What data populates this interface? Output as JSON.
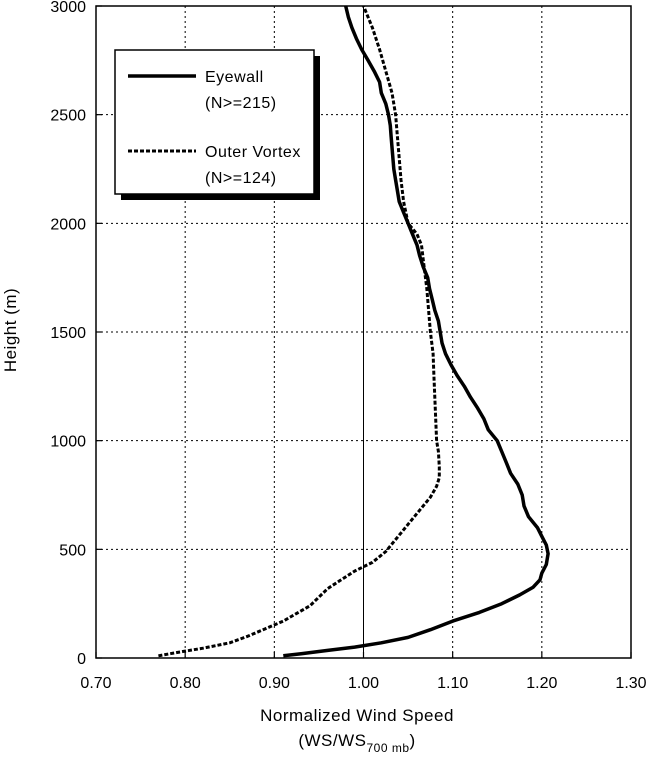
{
  "chart_data": {
    "type": "line",
    "title": "",
    "xlabel": "Normalized Wind Speed",
    "xlabel_line2_main": "(WS/WS",
    "xlabel_line2_sub": "700 mb",
    "xlabel_line2_end": ")",
    "ylabel": "Height (m)",
    "xlim": [
      0.7,
      1.3
    ],
    "ylim": [
      0,
      3000
    ],
    "x_ticks": [
      "0.70",
      "0.80",
      "0.90",
      "1.00",
      "1.10",
      "1.20",
      "1.30"
    ],
    "y_ticks": [
      "0",
      "500",
      "1000",
      "1500",
      "2000",
      "2500",
      "3000"
    ],
    "grid": true,
    "legend_position": "top-left",
    "reference_line_x": 1.0,
    "series": [
      {
        "name": "Eyewall",
        "count_label": "(N>=215)",
        "style": "solid",
        "color": "#000000",
        "points": [
          [
            0.91,
            10
          ],
          [
            0.93,
            20
          ],
          [
            0.96,
            35
          ],
          [
            0.99,
            50
          ],
          [
            1.02,
            70
          ],
          [
            1.05,
            95
          ],
          [
            1.075,
            130
          ],
          [
            1.1,
            170
          ],
          [
            1.13,
            210
          ],
          [
            1.155,
            250
          ],
          [
            1.175,
            290
          ],
          [
            1.19,
            325
          ],
          [
            1.198,
            360
          ],
          [
            1.2,
            390
          ],
          [
            1.205,
            430
          ],
          [
            1.207,
            480
          ],
          [
            1.205,
            520
          ],
          [
            1.2,
            560
          ],
          [
            1.195,
            600
          ],
          [
            1.185,
            650
          ],
          [
            1.18,
            700
          ],
          [
            1.178,
            750
          ],
          [
            1.173,
            800
          ],
          [
            1.165,
            850
          ],
          [
            1.16,
            900
          ],
          [
            1.155,
            950
          ],
          [
            1.15,
            1000
          ],
          [
            1.14,
            1050
          ],
          [
            1.135,
            1100
          ],
          [
            1.128,
            1150
          ],
          [
            1.12,
            1200
          ],
          [
            1.113,
            1250
          ],
          [
            1.105,
            1300
          ],
          [
            1.098,
            1350
          ],
          [
            1.092,
            1400
          ],
          [
            1.088,
            1450
          ],
          [
            1.086,
            1500
          ],
          [
            1.084,
            1550
          ],
          [
            1.08,
            1600
          ],
          [
            1.077,
            1650
          ],
          [
            1.074,
            1700
          ],
          [
            1.072,
            1750
          ],
          [
            1.067,
            1800
          ],
          [
            1.063,
            1850
          ],
          [
            1.06,
            1900
          ],
          [
            1.055,
            1950
          ],
          [
            1.05,
            2000
          ],
          [
            1.045,
            2050
          ],
          [
            1.04,
            2100
          ],
          [
            1.038,
            2150
          ],
          [
            1.036,
            2200
          ],
          [
            1.034,
            2250
          ],
          [
            1.033,
            2300
          ],
          [
            1.032,
            2350
          ],
          [
            1.031,
            2400
          ],
          [
            1.03,
            2450
          ],
          [
            1.028,
            2500
          ],
          [
            1.025,
            2550
          ],
          [
            1.02,
            2600
          ],
          [
            1.018,
            2650
          ],
          [
            1.012,
            2700
          ],
          [
            1.005,
            2750
          ],
          [
            0.998,
            2800
          ],
          [
            0.992,
            2850
          ],
          [
            0.987,
            2900
          ],
          [
            0.983,
            2950
          ],
          [
            0.98,
            3000
          ]
        ]
      },
      {
        "name": "Outer Vortex",
        "count_label": "(N>=124)",
        "style": "dashed",
        "color": "#000000",
        "points": [
          [
            0.77,
            10
          ],
          [
            0.79,
            25
          ],
          [
            0.82,
            45
          ],
          [
            0.85,
            70
          ],
          [
            0.87,
            100
          ],
          [
            0.89,
            135
          ],
          [
            0.91,
            170
          ],
          [
            0.925,
            205
          ],
          [
            0.94,
            240
          ],
          [
            0.95,
            280
          ],
          [
            0.96,
            320
          ],
          [
            0.975,
            360
          ],
          [
            0.99,
            400
          ],
          [
            1.01,
            440
          ],
          [
            1.025,
            490
          ],
          [
            1.035,
            540
          ],
          [
            1.045,
            590
          ],
          [
            1.055,
            640
          ],
          [
            1.065,
            690
          ],
          [
            1.075,
            740
          ],
          [
            1.082,
            790
          ],
          [
            1.085,
            830
          ],
          [
            1.085,
            880
          ],
          [
            1.084,
            950
          ],
          [
            1.082,
            1000
          ],
          [
            1.081,
            1100
          ],
          [
            1.08,
            1200
          ],
          [
            1.079,
            1300
          ],
          [
            1.078,
            1400
          ],
          [
            1.075,
            1500
          ],
          [
            1.073,
            1600
          ],
          [
            1.071,
            1700
          ],
          [
            1.068,
            1800
          ],
          [
            1.065,
            1900
          ],
          [
            1.06,
            1950
          ],
          [
            1.05,
            2000
          ],
          [
            1.045,
            2100
          ],
          [
            1.042,
            2200
          ],
          [
            1.04,
            2300
          ],
          [
            1.038,
            2400
          ],
          [
            1.036,
            2500
          ],
          [
            1.032,
            2600
          ],
          [
            1.025,
            2700
          ],
          [
            1.018,
            2800
          ],
          [
            1.01,
            2900
          ],
          [
            1.005,
            2950
          ],
          [
            1.0,
            3000
          ]
        ]
      }
    ]
  }
}
